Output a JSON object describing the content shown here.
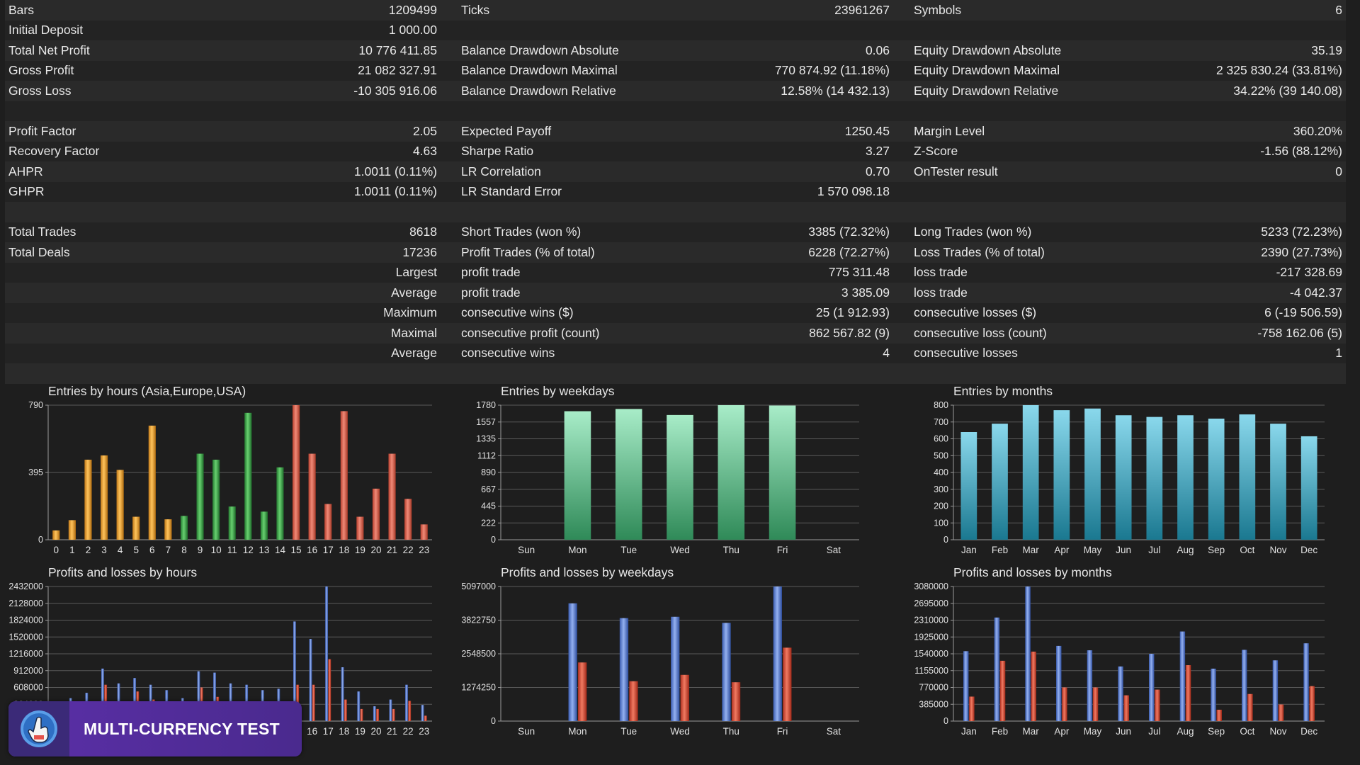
{
  "stats_rows": [
    [
      {
        "t": "Bars"
      },
      {
        "t": "1209499",
        "a": "r"
      },
      {
        "t": "Ticks"
      },
      {
        "t": "23961267",
        "a": "r"
      },
      {
        "t": "Symbols"
      },
      {
        "t": "6",
        "a": "r"
      }
    ],
    [
      {
        "t": "Initial Deposit"
      },
      {
        "t": "1 000.00",
        "a": "r"
      },
      {
        "t": ""
      },
      {
        "t": "",
        "a": "r"
      },
      {
        "t": ""
      },
      {
        "t": "",
        "a": "r"
      }
    ],
    [
      {
        "t": "Total Net Profit"
      },
      {
        "t": "10 776 411.85",
        "a": "r"
      },
      {
        "t": "Balance Drawdown Absolute"
      },
      {
        "t": "0.06",
        "a": "r"
      },
      {
        "t": "Equity Drawdown Absolute"
      },
      {
        "t": "35.19",
        "a": "r"
      }
    ],
    [
      {
        "t": "Gross Profit"
      },
      {
        "t": "21 082 327.91",
        "a": "r"
      },
      {
        "t": "Balance Drawdown Maximal"
      },
      {
        "t": "770 874.92 (11.18%)",
        "a": "r"
      },
      {
        "t": "Equity Drawdown Maximal"
      },
      {
        "t": "2 325 830.24 (33.81%)",
        "a": "r"
      }
    ],
    [
      {
        "t": "Gross Loss"
      },
      {
        "t": "-10 305 916.06",
        "a": "r"
      },
      {
        "t": "Balance Drawdown Relative"
      },
      {
        "t": "12.58% (14 432.13)",
        "a": "r"
      },
      {
        "t": "Equity Drawdown Relative"
      },
      {
        "t": "34.22% (39 140.08)",
        "a": "r"
      }
    ],
    [
      {
        "t": ""
      },
      {
        "t": "",
        "a": "r"
      },
      {
        "t": ""
      },
      {
        "t": "",
        "a": "r"
      },
      {
        "t": ""
      },
      {
        "t": "",
        "a": "r"
      }
    ],
    [
      {
        "t": "Profit Factor"
      },
      {
        "t": "2.05",
        "a": "r"
      },
      {
        "t": "Expected Payoff"
      },
      {
        "t": "1250.45",
        "a": "r"
      },
      {
        "t": "Margin Level"
      },
      {
        "t": "360.20%",
        "a": "r"
      }
    ],
    [
      {
        "t": "Recovery Factor"
      },
      {
        "t": "4.63",
        "a": "r"
      },
      {
        "t": "Sharpe Ratio"
      },
      {
        "t": "3.27",
        "a": "r"
      },
      {
        "t": "Z-Score"
      },
      {
        "t": "-1.56 (88.12%)",
        "a": "r"
      }
    ],
    [
      {
        "t": "AHPR"
      },
      {
        "t": "1.0011 (0.11%)",
        "a": "r"
      },
      {
        "t": "LR Correlation"
      },
      {
        "t": "0.70",
        "a": "r"
      },
      {
        "t": "OnTester result"
      },
      {
        "t": "0",
        "a": "r"
      }
    ],
    [
      {
        "t": "GHPR"
      },
      {
        "t": "1.0011 (0.11%)",
        "a": "r"
      },
      {
        "t": "LR Standard Error"
      },
      {
        "t": "1 570 098.18",
        "a": "r"
      },
      {
        "t": ""
      },
      {
        "t": "",
        "a": "r"
      }
    ],
    [
      {
        "t": ""
      },
      {
        "t": "",
        "a": "r"
      },
      {
        "t": ""
      },
      {
        "t": "",
        "a": "r"
      },
      {
        "t": ""
      },
      {
        "t": "",
        "a": "r"
      }
    ],
    [
      {
        "t": "Total Trades"
      },
      {
        "t": "8618",
        "a": "r"
      },
      {
        "t": "Short Trades (won %)"
      },
      {
        "t": "3385 (72.32%)",
        "a": "r"
      },
      {
        "t": "Long Trades (won %)"
      },
      {
        "t": "5233 (72.23%)",
        "a": "r"
      }
    ],
    [
      {
        "t": "Total Deals"
      },
      {
        "t": "17236",
        "a": "r"
      },
      {
        "t": "Profit Trades (% of total)"
      },
      {
        "t": "6228 (72.27%)",
        "a": "r"
      },
      {
        "t": "Loss Trades (% of total)"
      },
      {
        "t": "2390 (27.73%)",
        "a": "r"
      }
    ],
    [
      {
        "t": ""
      },
      {
        "t": "Largest",
        "a": "r"
      },
      {
        "t": "profit trade"
      },
      {
        "t": "775 311.48",
        "a": "r"
      },
      {
        "t": "loss trade"
      },
      {
        "t": "-217 328.69",
        "a": "r"
      }
    ],
    [
      {
        "t": ""
      },
      {
        "t": "Average",
        "a": "r"
      },
      {
        "t": "profit trade"
      },
      {
        "t": "3 385.09",
        "a": "r"
      },
      {
        "t": "loss trade"
      },
      {
        "t": "-4 042.37",
        "a": "r"
      }
    ],
    [
      {
        "t": ""
      },
      {
        "t": "Maximum",
        "a": "r"
      },
      {
        "t": "consecutive wins ($)"
      },
      {
        "t": "25 (1 912.93)",
        "a": "r"
      },
      {
        "t": "consecutive losses ($)"
      },
      {
        "t": "6 (-19 506.59)",
        "a": "r"
      }
    ],
    [
      {
        "t": ""
      },
      {
        "t": "Maximal",
        "a": "r"
      },
      {
        "t": "consecutive profit (count)"
      },
      {
        "t": "862 567.82 (9)",
        "a": "r"
      },
      {
        "t": "consecutive loss (count)"
      },
      {
        "t": "-758 162.06 (5)",
        "a": "r"
      }
    ],
    [
      {
        "t": ""
      },
      {
        "t": "Average",
        "a": "r"
      },
      {
        "t": "consecutive wins"
      },
      {
        "t": "4",
        "a": "r"
      },
      {
        "t": "consecutive losses"
      },
      {
        "t": "1",
        "a": "r"
      }
    ],
    [
      {
        "t": ""
      },
      {
        "t": "",
        "a": "r"
      },
      {
        "t": ""
      },
      {
        "t": "",
        "a": "r"
      },
      {
        "t": ""
      },
      {
        "t": "",
        "a": "r"
      }
    ]
  ],
  "badge": {
    "title": "MULTI-CURRENCY TEST",
    "logo_icon": "hand-pointer-icon"
  },
  "colors": {
    "orange": "#e8a030",
    "green": "#3aa84a",
    "red": "#d85a48",
    "mint": "#6fd3a0",
    "teal": "#3ab0c8",
    "blue": "#5a7fd0",
    "loss_red": "#d24a38",
    "background": "#1e1e1e"
  },
  "chart_data": [
    {
      "id": "hours-entries",
      "type": "bar",
      "title": "Entries by hours (Asia,Europe,USA)",
      "categories": [
        "0",
        "1",
        "2",
        "3",
        "4",
        "5",
        "6",
        "7",
        "8",
        "9",
        "10",
        "11",
        "12",
        "13",
        "14",
        "15",
        "16",
        "17",
        "18",
        "19",
        "20",
        "21",
        "22",
        "23"
      ],
      "values": [
        55,
        115,
        470,
        495,
        410,
        135,
        670,
        120,
        140,
        505,
        470,
        195,
        745,
        165,
        425,
        790,
        505,
        210,
        755,
        135,
        300,
        505,
        240,
        90
      ],
      "color_groups": [
        "orange",
        "orange",
        "orange",
        "orange",
        "orange",
        "orange",
        "orange",
        "orange",
        "green",
        "green",
        "green",
        "green",
        "green",
        "green",
        "green",
        "red",
        "red",
        "red",
        "red",
        "red",
        "red",
        "red",
        "red",
        "red"
      ],
      "y_ticks": [
        {
          "v": 0,
          "l": "0"
        },
        {
          "v": 395,
          "l": "395"
        },
        {
          "v": 790,
          "l": "790"
        }
      ],
      "ylim": [
        0,
        790
      ]
    },
    {
      "id": "weekday-entries",
      "type": "bar",
      "title": "Entries by weekdays",
      "categories": [
        "Sun",
        "Mon",
        "Tue",
        "Wed",
        "Thu",
        "Fri",
        "Sat"
      ],
      "values": [
        0,
        1700,
        1730,
        1650,
        1780,
        1775,
        0
      ],
      "color": "mint",
      "y_ticks": [
        {
          "v": 0,
          "l": "0"
        },
        {
          "v": 222,
          "l": "222"
        },
        {
          "v": 445,
          "l": "445"
        },
        {
          "v": 667,
          "l": "667"
        },
        {
          "v": 890,
          "l": "890"
        },
        {
          "v": 1112,
          "l": "1112"
        },
        {
          "v": 1335,
          "l": "1335"
        },
        {
          "v": 1557,
          "l": "1557"
        },
        {
          "v": 1780,
          "l": "1780"
        }
      ],
      "ylim": [
        0,
        1780
      ]
    },
    {
      "id": "month-entries",
      "type": "bar",
      "title": "Entries by months",
      "categories": [
        "Jan",
        "Feb",
        "Mar",
        "Apr",
        "May",
        "Jun",
        "Jul",
        "Aug",
        "Sep",
        "Oct",
        "Nov",
        "Dec"
      ],
      "values": [
        640,
        690,
        800,
        770,
        780,
        740,
        730,
        740,
        720,
        745,
        690,
        615
      ],
      "color": "teal",
      "y_ticks": [
        {
          "v": 0,
          "l": "0"
        },
        {
          "v": 100,
          "l": "100"
        },
        {
          "v": 200,
          "l": "200"
        },
        {
          "v": 300,
          "l": "300"
        },
        {
          "v": 400,
          "l": "400"
        },
        {
          "v": 500,
          "l": "500"
        },
        {
          "v": 600,
          "l": "600"
        },
        {
          "v": 700,
          "l": "700"
        },
        {
          "v": 800,
          "l": "800"
        }
      ],
      "ylim": [
        0,
        800
      ]
    },
    {
      "id": "hours-pl",
      "type": "bar",
      "title": "Profits and losses by hours",
      "categories": [
        "0",
        "1",
        "2",
        "3",
        "4",
        "5",
        "6",
        "7",
        "8",
        "9",
        "10",
        "11",
        "12",
        "13",
        "14",
        "15",
        "16",
        "17",
        "18",
        "19",
        "20",
        "21",
        "22",
        "23"
      ],
      "series": [
        {
          "values": [
            0.03,
            0.17,
            0.21,
            0.39,
            0.28,
            0.32,
            0.27,
            0.23,
            0.17,
            0.37,
            0.36,
            0.28,
            0.27,
            0.23,
            0.24,
            0.74,
            0.61,
            1.0,
            0.4,
            0.22,
            0.11,
            0.16,
            0.27,
            0.12
          ],
          "color": "blue"
        },
        {
          "values": [
            0.01,
            0.06,
            0.08,
            0.27,
            0.13,
            0.22,
            0.16,
            0.12,
            0.06,
            0.25,
            0.18,
            0.11,
            0.08,
            0.09,
            0.1,
            0.27,
            0.27,
            0.46,
            0.16,
            0.09,
            0.09,
            0.09,
            0.15,
            0.04
          ],
          "color": "loss_red"
        }
      ],
      "y_ticks": [
        {
          "v": 0,
          "l": "0"
        },
        {
          "v": 0.125,
          "l": "304000"
        },
        {
          "v": 0.25,
          "l": "608000"
        },
        {
          "v": 0.375,
          "l": "912000"
        },
        {
          "v": 0.5,
          "l": "1216000"
        },
        {
          "v": 0.625,
          "l": "1520000"
        },
        {
          "v": 0.75,
          "l": "1824000"
        },
        {
          "v": 0.875,
          "l": "2128000"
        },
        {
          "v": 1.0,
          "l": "2432000"
        }
      ],
      "ylim": [
        0,
        1.0
      ]
    },
    {
      "id": "weekday-pl",
      "type": "bar",
      "title": "Profits and losses by weekdays",
      "categories": [
        "Sun",
        "Mon",
        "Tue",
        "Wed",
        "Thu",
        "Fri",
        "Sat"
      ],
      "series": [
        {
          "values": [
            0,
            4460000,
            3900000,
            3950000,
            3720000,
            5097000,
            0
          ],
          "color": "blue"
        },
        {
          "values": [
            0,
            2220000,
            1510000,
            1750000,
            1470000,
            2780000,
            0
          ],
          "color": "loss_red"
        }
      ],
      "y_ticks": [
        {
          "v": 0,
          "l": "0"
        },
        {
          "v": 1274250,
          "l": "1274250"
        },
        {
          "v": 2548500,
          "l": "2548500"
        },
        {
          "v": 3822750,
          "l": "3822750"
        },
        {
          "v": 5097000,
          "l": "5097000"
        }
      ],
      "ylim": [
        0,
        5097000
      ]
    },
    {
      "id": "month-pl",
      "type": "bar",
      "title": "Profits and losses by months",
      "categories": [
        "Jan",
        "Feb",
        "Mar",
        "Apr",
        "May",
        "Jun",
        "Jul",
        "Aug",
        "Sep",
        "Oct",
        "Nov",
        "Dec"
      ],
      "series": [
        {
          "values": [
            1600000,
            2370000,
            3080000,
            1720000,
            1620000,
            1250000,
            1540000,
            2050000,
            1200000,
            1630000,
            1390000,
            1780000
          ],
          "color": "blue"
        },
        {
          "values": [
            560000,
            1380000,
            1590000,
            770000,
            770000,
            590000,
            720000,
            1280000,
            260000,
            620000,
            380000,
            800000
          ],
          "color": "loss_red"
        }
      ],
      "y_ticks": [
        {
          "v": 0,
          "l": "0"
        },
        {
          "v": 385000,
          "l": "385000"
        },
        {
          "v": 770000,
          "l": "770000"
        },
        {
          "v": 1155000,
          "l": "1155000"
        },
        {
          "v": 1540000,
          "l": "1540000"
        },
        {
          "v": 1925000,
          "l": "1925000"
        },
        {
          "v": 2310000,
          "l": "2310000"
        },
        {
          "v": 2695000,
          "l": "2695000"
        },
        {
          "v": 3080000,
          "l": "3080000"
        }
      ],
      "ylim": [
        0,
        3080000
      ]
    }
  ]
}
